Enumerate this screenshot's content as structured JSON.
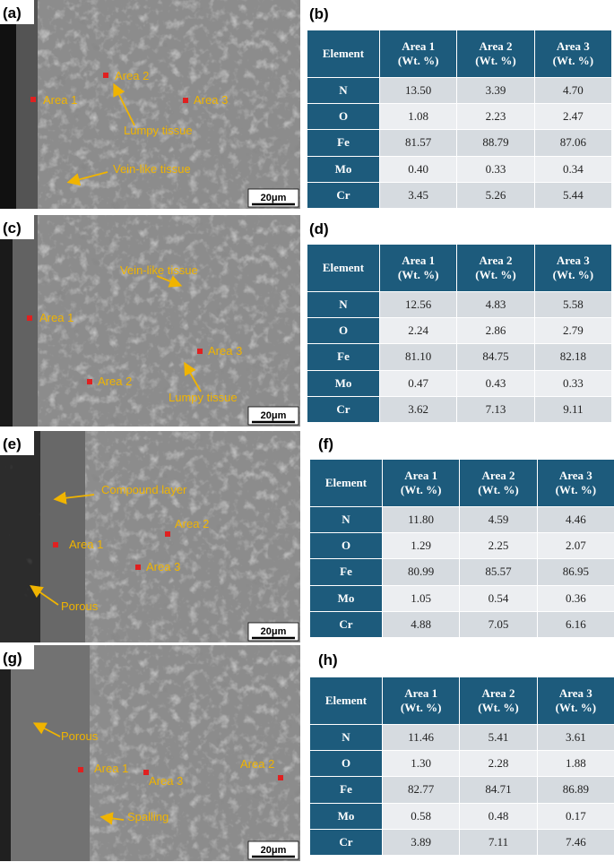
{
  "panels": [
    {
      "image_label": "(a)",
      "annotations": [
        "Area 1",
        "Area 2",
        "Area 3",
        "Lumpy tissue",
        "Vein-like tissue"
      ],
      "scale_bar": "20μm",
      "table_label": "(b)",
      "table": {
        "header": [
          "Element",
          "Area 1\n(Wt. %)",
          "Area 2\n(Wt. %)",
          "Area 3\n(Wt. %)"
        ],
        "rows": [
          [
            "N",
            "13.50",
            "3.39",
            "4.70"
          ],
          [
            "O",
            "1.08",
            "2.23",
            "2.47"
          ],
          [
            "Fe",
            "81.57",
            "88.79",
            "87.06"
          ],
          [
            "Mo",
            "0.40",
            "0.33",
            "0.34"
          ],
          [
            "Cr",
            "3.45",
            "5.26",
            "5.44"
          ]
        ]
      }
    },
    {
      "image_label": "(c)",
      "annotations": [
        "Area 1",
        "Vein-like tissue",
        "Area 3",
        "Lumpy tissue",
        "Area 2"
      ],
      "scale_bar": "20μm",
      "table_label": "(d)",
      "table": {
        "header": [
          "Element",
          "Area 1\n(Wt. %)",
          "Area 2\n(Wt. %)",
          "Area 3\n(Wt. %)"
        ],
        "rows": [
          [
            "N",
            "12.56",
            "4.83",
            "5.58"
          ],
          [
            "O",
            "2.24",
            "2.86",
            "2.79"
          ],
          [
            "Fe",
            "81.10",
            "84.75",
            "82.18"
          ],
          [
            "Mo",
            "0.47",
            "0.43",
            "0.33"
          ],
          [
            "Cr",
            "3.62",
            "7.13",
            "9.11"
          ]
        ]
      }
    },
    {
      "image_label": "(e)",
      "annotations": [
        "Compound layer",
        "Area 2",
        "Area 1",
        "Area 3",
        "Porous"
      ],
      "scale_bar": "20μm",
      "table_label": "(f)",
      "table": {
        "header": [
          "Element",
          "Area 1\n(Wt. %)",
          "Area 2\n(Wt. %)",
          "Area 3\n(Wt. %)"
        ],
        "rows": [
          [
            "N",
            "11.80",
            "4.59",
            "4.46"
          ],
          [
            "O",
            "1.29",
            "2.25",
            "2.07"
          ],
          [
            "Fe",
            "80.99",
            "85.57",
            "86.95"
          ],
          [
            "Mo",
            "1.05",
            "0.54",
            "0.36"
          ],
          [
            "Cr",
            "4.88",
            "7.05",
            "6.16"
          ]
        ]
      }
    },
    {
      "image_label": "(g)",
      "annotations": [
        "Porous",
        "Area 1",
        "Area 3",
        "Area 2",
        "Spalling"
      ],
      "scale_bar": "20μm",
      "table_label": "(h)",
      "table": {
        "header": [
          "Element",
          "Area 1\n(Wt. %)",
          "Area 2\n(Wt. %)",
          "Area 3\n(Wt. %)"
        ],
        "rows": [
          [
            "N",
            "11.46",
            "5.41",
            "3.61"
          ],
          [
            "O",
            "1.30",
            "2.28",
            "1.88"
          ],
          [
            "Fe",
            "82.77",
            "84.71",
            "86.89"
          ],
          [
            "Mo",
            "0.58",
            "0.48",
            "0.17"
          ],
          [
            "Cr",
            "3.89",
            "7.11",
            "7.46"
          ]
        ]
      }
    }
  ]
}
